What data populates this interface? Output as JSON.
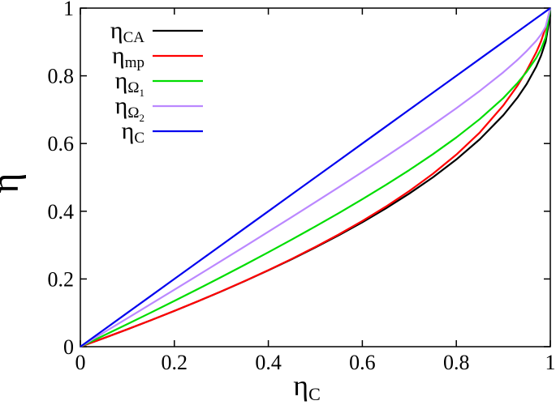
{
  "chart_data": {
    "type": "line",
    "xlabel": "η",
    "xlabel_sub": "C",
    "ylabel": "η",
    "xlim": [
      0,
      1
    ],
    "ylim": [
      0,
      1
    ],
    "x_ticks": [
      0,
      0.2,
      0.4,
      0.6,
      0.8,
      1
    ],
    "y_ticks": [
      0,
      0.2,
      0.4,
      0.6,
      0.8,
      1
    ],
    "x_tick_labels": [
      "0",
      "0.2",
      "0.4",
      "0.6",
      "0.8",
      "1"
    ],
    "y_tick_labels": [
      "0",
      "0.2",
      "0.4",
      "0.6",
      "0.8",
      "1"
    ],
    "grid": false,
    "legend_position": "top-left",
    "x": [
      0,
      0.05,
      0.1,
      0.15,
      0.2,
      0.25,
      0.3,
      0.35,
      0.4,
      0.45,
      0.5,
      0.55,
      0.6,
      0.65,
      0.7,
      0.75,
      0.8,
      0.85,
      0.9,
      0.93,
      0.95,
      0.97,
      0.98,
      0.99,
      1
    ],
    "series": [
      {
        "name": "η",
        "sub": "CA",
        "subsub": "",
        "color": "#000000",
        "values": [
          0,
          0.0253,
          0.0513,
          0.078,
          0.1056,
          0.134,
          0.1633,
          0.1937,
          0.2254,
          0.2584,
          0.2929,
          0.3292,
          0.3675,
          0.4084,
          0.4523,
          0.5,
          0.5528,
          0.6127,
          0.6838,
          0.7354,
          0.7764,
          0.8268,
          0.8586,
          0.9,
          0.98
        ]
      },
      {
        "name": "η",
        "sub": "mp",
        "subsub": "",
        "color": "#ff0000",
        "values": [
          0,
          0.0253,
          0.0513,
          0.0781,
          0.1057,
          0.1341,
          0.1635,
          0.1941,
          0.226,
          0.2594,
          0.2946,
          0.3316,
          0.3713,
          0.4136,
          0.4598,
          0.5104,
          0.5672,
          0.6327,
          0.7126,
          0.7706,
          0.8163,
          0.8692,
          0.9011,
          0.9419,
          1
        ]
      },
      {
        "name": "η",
        "sub": "Ω",
        "subsub": "1",
        "color": "#00dd00",
        "values": [
          0,
          0.0331,
          0.0666,
          0.1006,
          0.1351,
          0.1701,
          0.2057,
          0.2419,
          0.2788,
          0.3165,
          0.3551,
          0.3947,
          0.4355,
          0.4777,
          0.5218,
          0.5683,
          0.618,
          0.6724,
          0.7343,
          0.7785,
          0.8124,
          0.8525,
          0.8783,
          0.9128,
          1
        ]
      },
      {
        "name": "η",
        "sub": "Ω",
        "subsub": "2",
        "color": "#bb88ff",
        "values": [
          0,
          0.0419,
          0.0839,
          0.126,
          0.1683,
          0.2107,
          0.2534,
          0.2963,
          0.3395,
          0.383,
          0.4268,
          0.4712,
          0.516,
          0.5615,
          0.6079,
          0.6554,
          0.7043,
          0.7555,
          0.8105,
          0.8469,
          0.8737,
          0.9034,
          0.9215,
          0.945,
          1
        ]
      },
      {
        "name": "η",
        "sub": "C",
        "subsub": "",
        "color": "#0000ee",
        "values": [
          0,
          0.05,
          0.1,
          0.15,
          0.2,
          0.25,
          0.3,
          0.35,
          0.4,
          0.45,
          0.5,
          0.55,
          0.6,
          0.65,
          0.7,
          0.75,
          0.8,
          0.85,
          0.9,
          0.93,
          0.95,
          0.97,
          0.98,
          0.99,
          1
        ]
      }
    ]
  }
}
